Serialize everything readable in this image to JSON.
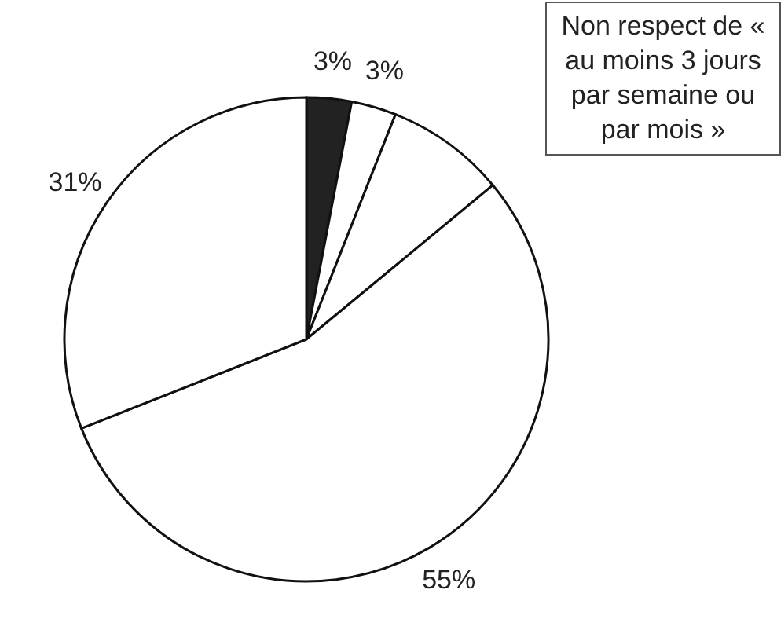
{
  "chart_data": {
    "type": "pie",
    "categories": [
      null,
      null,
      null,
      null,
      null
    ],
    "values": [
      3,
      3,
      8,
      55,
      31
    ],
    "value_labels": [
      "3%",
      "3%",
      null,
      "55%",
      "31%"
    ],
    "colors": [
      "#222222",
      "#ffffff",
      "#ffffff",
      "#ffffff",
      "#ffffff"
    ],
    "annotations": [
      "Non respect de « au moins 3 jours par semaine ou par mois »"
    ],
    "legend": false
  }
}
